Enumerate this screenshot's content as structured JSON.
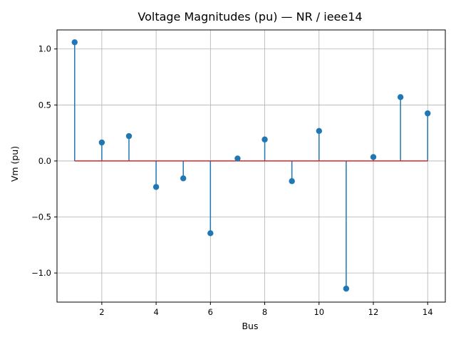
{
  "chart_data": {
    "type": "stem",
    "title": "Voltage Magnitudes (pu) — NR / ieee14",
    "xlabel": "Bus",
    "ylabel": "Vm (pu)",
    "x": [
      1,
      2,
      3,
      4,
      5,
      6,
      7,
      8,
      9,
      10,
      11,
      12,
      13,
      14
    ],
    "values": [
      1.06,
      0.165,
      0.222,
      -0.232,
      -0.155,
      -0.645,
      0.022,
      0.192,
      -0.18,
      0.268,
      -1.14,
      0.035,
      0.57,
      0.425
    ],
    "xlim": [
      0.35,
      14.65
    ],
    "ylim": [
      -1.26,
      1.17
    ],
    "xticks": [
      2,
      4,
      6,
      8,
      10,
      12,
      14
    ],
    "xtick_labels": [
      "2",
      "4",
      "6",
      "8",
      "10",
      "12",
      "14"
    ],
    "yticks": [
      -1.0,
      -0.5,
      0.0,
      0.5,
      1.0
    ],
    "ytick_labels": [
      "−1.0",
      "−0.5",
      "0.0",
      "0.5",
      "1.0"
    ],
    "grid": true,
    "colors": {
      "stem": "#1f77b4",
      "marker": "#1f77b4",
      "baseline": "#d62728",
      "grid": "#b0b0b0"
    }
  }
}
